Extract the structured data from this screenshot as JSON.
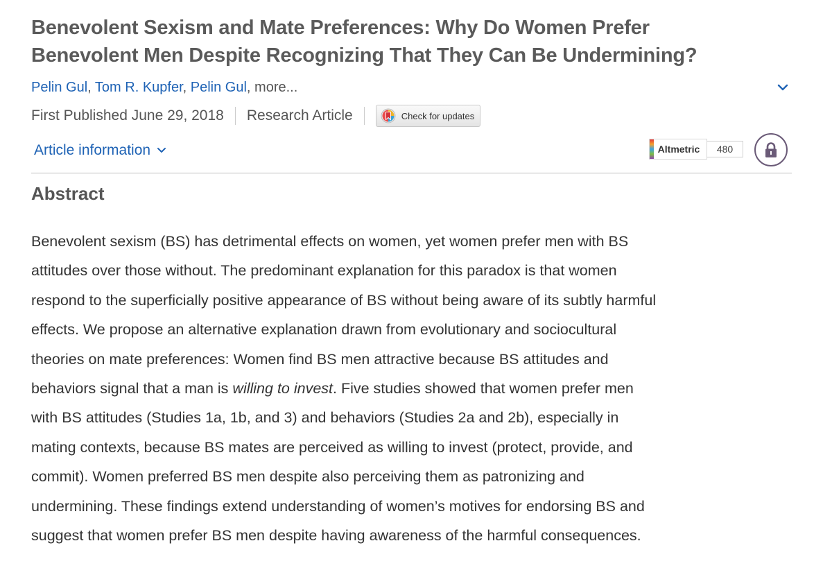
{
  "article": {
    "title_line1": "Benevolent Sexism and Mate Preferences: Why Do Women Prefer",
    "title_line2": "Benevolent Men Despite Recognizing That They Can Be Undermining?",
    "authors": [
      "Pelin Gul",
      "Tom R. Kupfer",
      "Pelin Gul"
    ],
    "author_separator": ",",
    "more_label": "more...",
    "published": "First Published June 29, 2018",
    "article_type": "Research Article",
    "check_updates_label": "Check for updates",
    "article_info_label": "Article information",
    "altmetric": {
      "label": "Altmetric",
      "score": "480"
    },
    "access": {
      "icon": "lock-icon",
      "color": "#6b5b78"
    }
  },
  "abstract": {
    "heading": "Abstract",
    "lines": [
      "Benevolent sexism (BS) has detrimental effects on women, yet women prefer men with BS",
      "attitudes over those without. The predominant explanation for this paradox is that women",
      "respond to the superficially positive appearance of BS without being aware of its subtly harmful",
      "effects. We propose an alternative explanation drawn from evolutionary and sociocultural",
      "theories on mate preferences: Women find BS men attractive because BS attitudes and",
      "behaviors signal that a man is ",
      "willing to invest",
      ". Five studies showed that women prefer men",
      "with BS attitudes (Studies 1a, 1b, and 3) and behaviors (Studies 2a and 2b), especially in",
      "mating contexts, because BS mates are perceived as willing to invest (protect, provide, and",
      "commit). Women preferred BS men despite also perceiving them as patronizing and",
      "undermining. These findings extend understanding of women’s motives for endorsing BS and",
      "suggest that women prefer BS men despite having awareness of the harmful consequences."
    ]
  },
  "colors": {
    "link": "#1f63b5",
    "title": "#5a5a5a",
    "body_text": "#333333",
    "rule": "#bdbdbd"
  },
  "icons": {
    "expand_authors": "chevron-down-icon",
    "article_info": "chevron-down-icon",
    "check_updates": "crossmark-icon",
    "access": "lock-icon"
  }
}
